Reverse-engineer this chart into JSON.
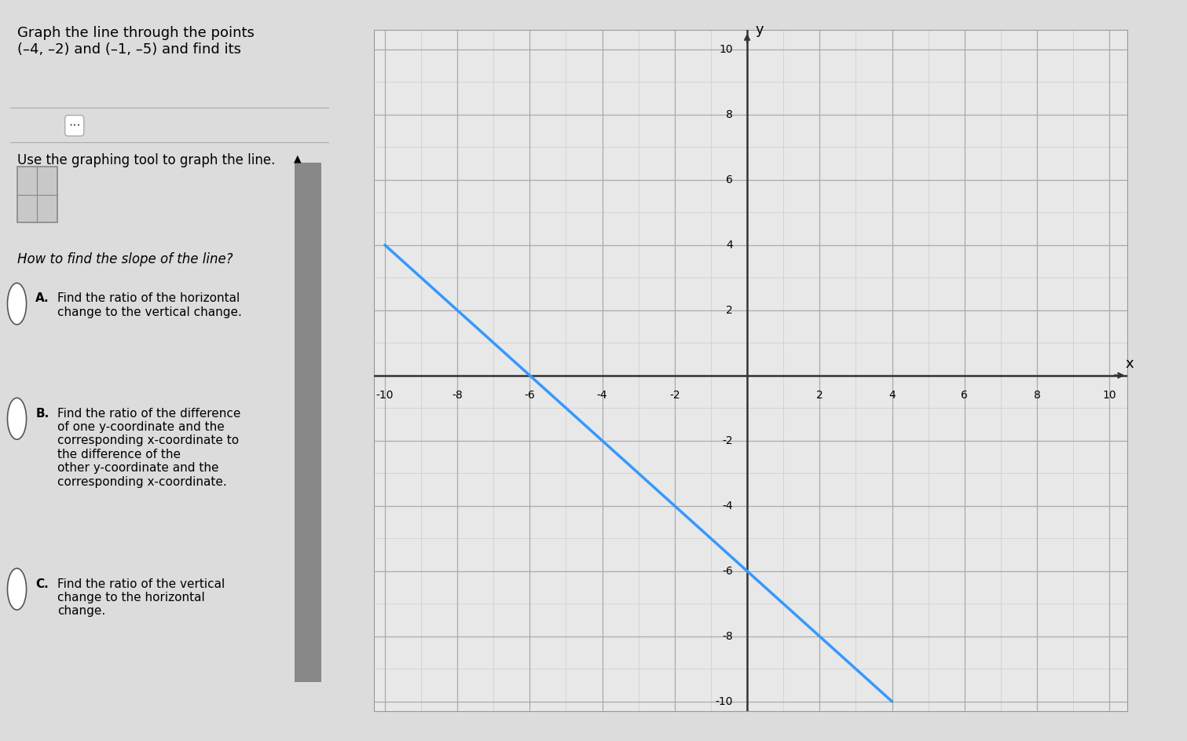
{
  "title_text": "Graph the line through the points\n(–4, –2) and (–1, –5) and find its",
  "use_graphing_text": "Use the graphing tool to graph the line.",
  "how_to_text": "How to find the slope of the line?",
  "option_a_label": "A.",
  "option_a_text": "Find the ratio of the horizontal\nchange to the vertical change.",
  "option_b_label": "B.",
  "option_b_text": "Find the ratio of the difference\nof one y-coordinate and the\ncorresponding x-coordinate to\nthe difference of the\nother y-coordinate and the\ncorresponding x-coordinate.",
  "option_c_label": "C.",
  "option_c_text": "Find the ratio of the vertical\nchange to the horizontal\nchange.",
  "point1": [
    -4,
    -2
  ],
  "point2": [
    -1,
    -5
  ],
  "line_color": "#3399FF",
  "line_width": 2.5,
  "xlim": [
    -10,
    10
  ],
  "ylim": [
    -10,
    10
  ],
  "grid_minor_color": "#cccccc",
  "grid_major_color": "#aaaaaa",
  "axis_color": "#333333",
  "bg_color": "#e8e8e8",
  "left_panel_bg": "#dcdcdc",
  "top_bar_color": "#2a7f9e"
}
